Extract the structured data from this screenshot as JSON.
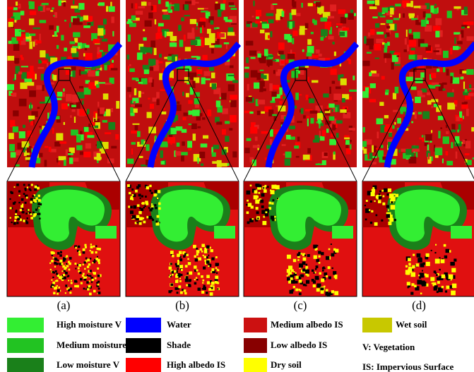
{
  "panels": [
    "(a)",
    "(b)",
    "(c)",
    "(d)"
  ],
  "legend": [
    {
      "label": "High moisture V",
      "color": "#33ee33"
    },
    {
      "label": "Medium moisture V",
      "color": "#22c322"
    },
    {
      "label": "Low moisture V",
      "color": "#1a801a"
    },
    {
      "label": "Water",
      "color": "#0000ff"
    },
    {
      "label": "Shade",
      "color": "#000000"
    },
    {
      "label": "High albedo IS",
      "color": "#ff0000"
    },
    {
      "label": "Medium albedo IS",
      "color": "#cc1111"
    },
    {
      "label": "Low albedo IS",
      "color": "#880000"
    },
    {
      "label": "Dry soil",
      "color": "#ffff00"
    },
    {
      "label": "Wet soil",
      "color": "#c8c800"
    }
  ],
  "notes": [
    "V: Vegetation",
    "IS: Impervious Surface"
  ]
}
